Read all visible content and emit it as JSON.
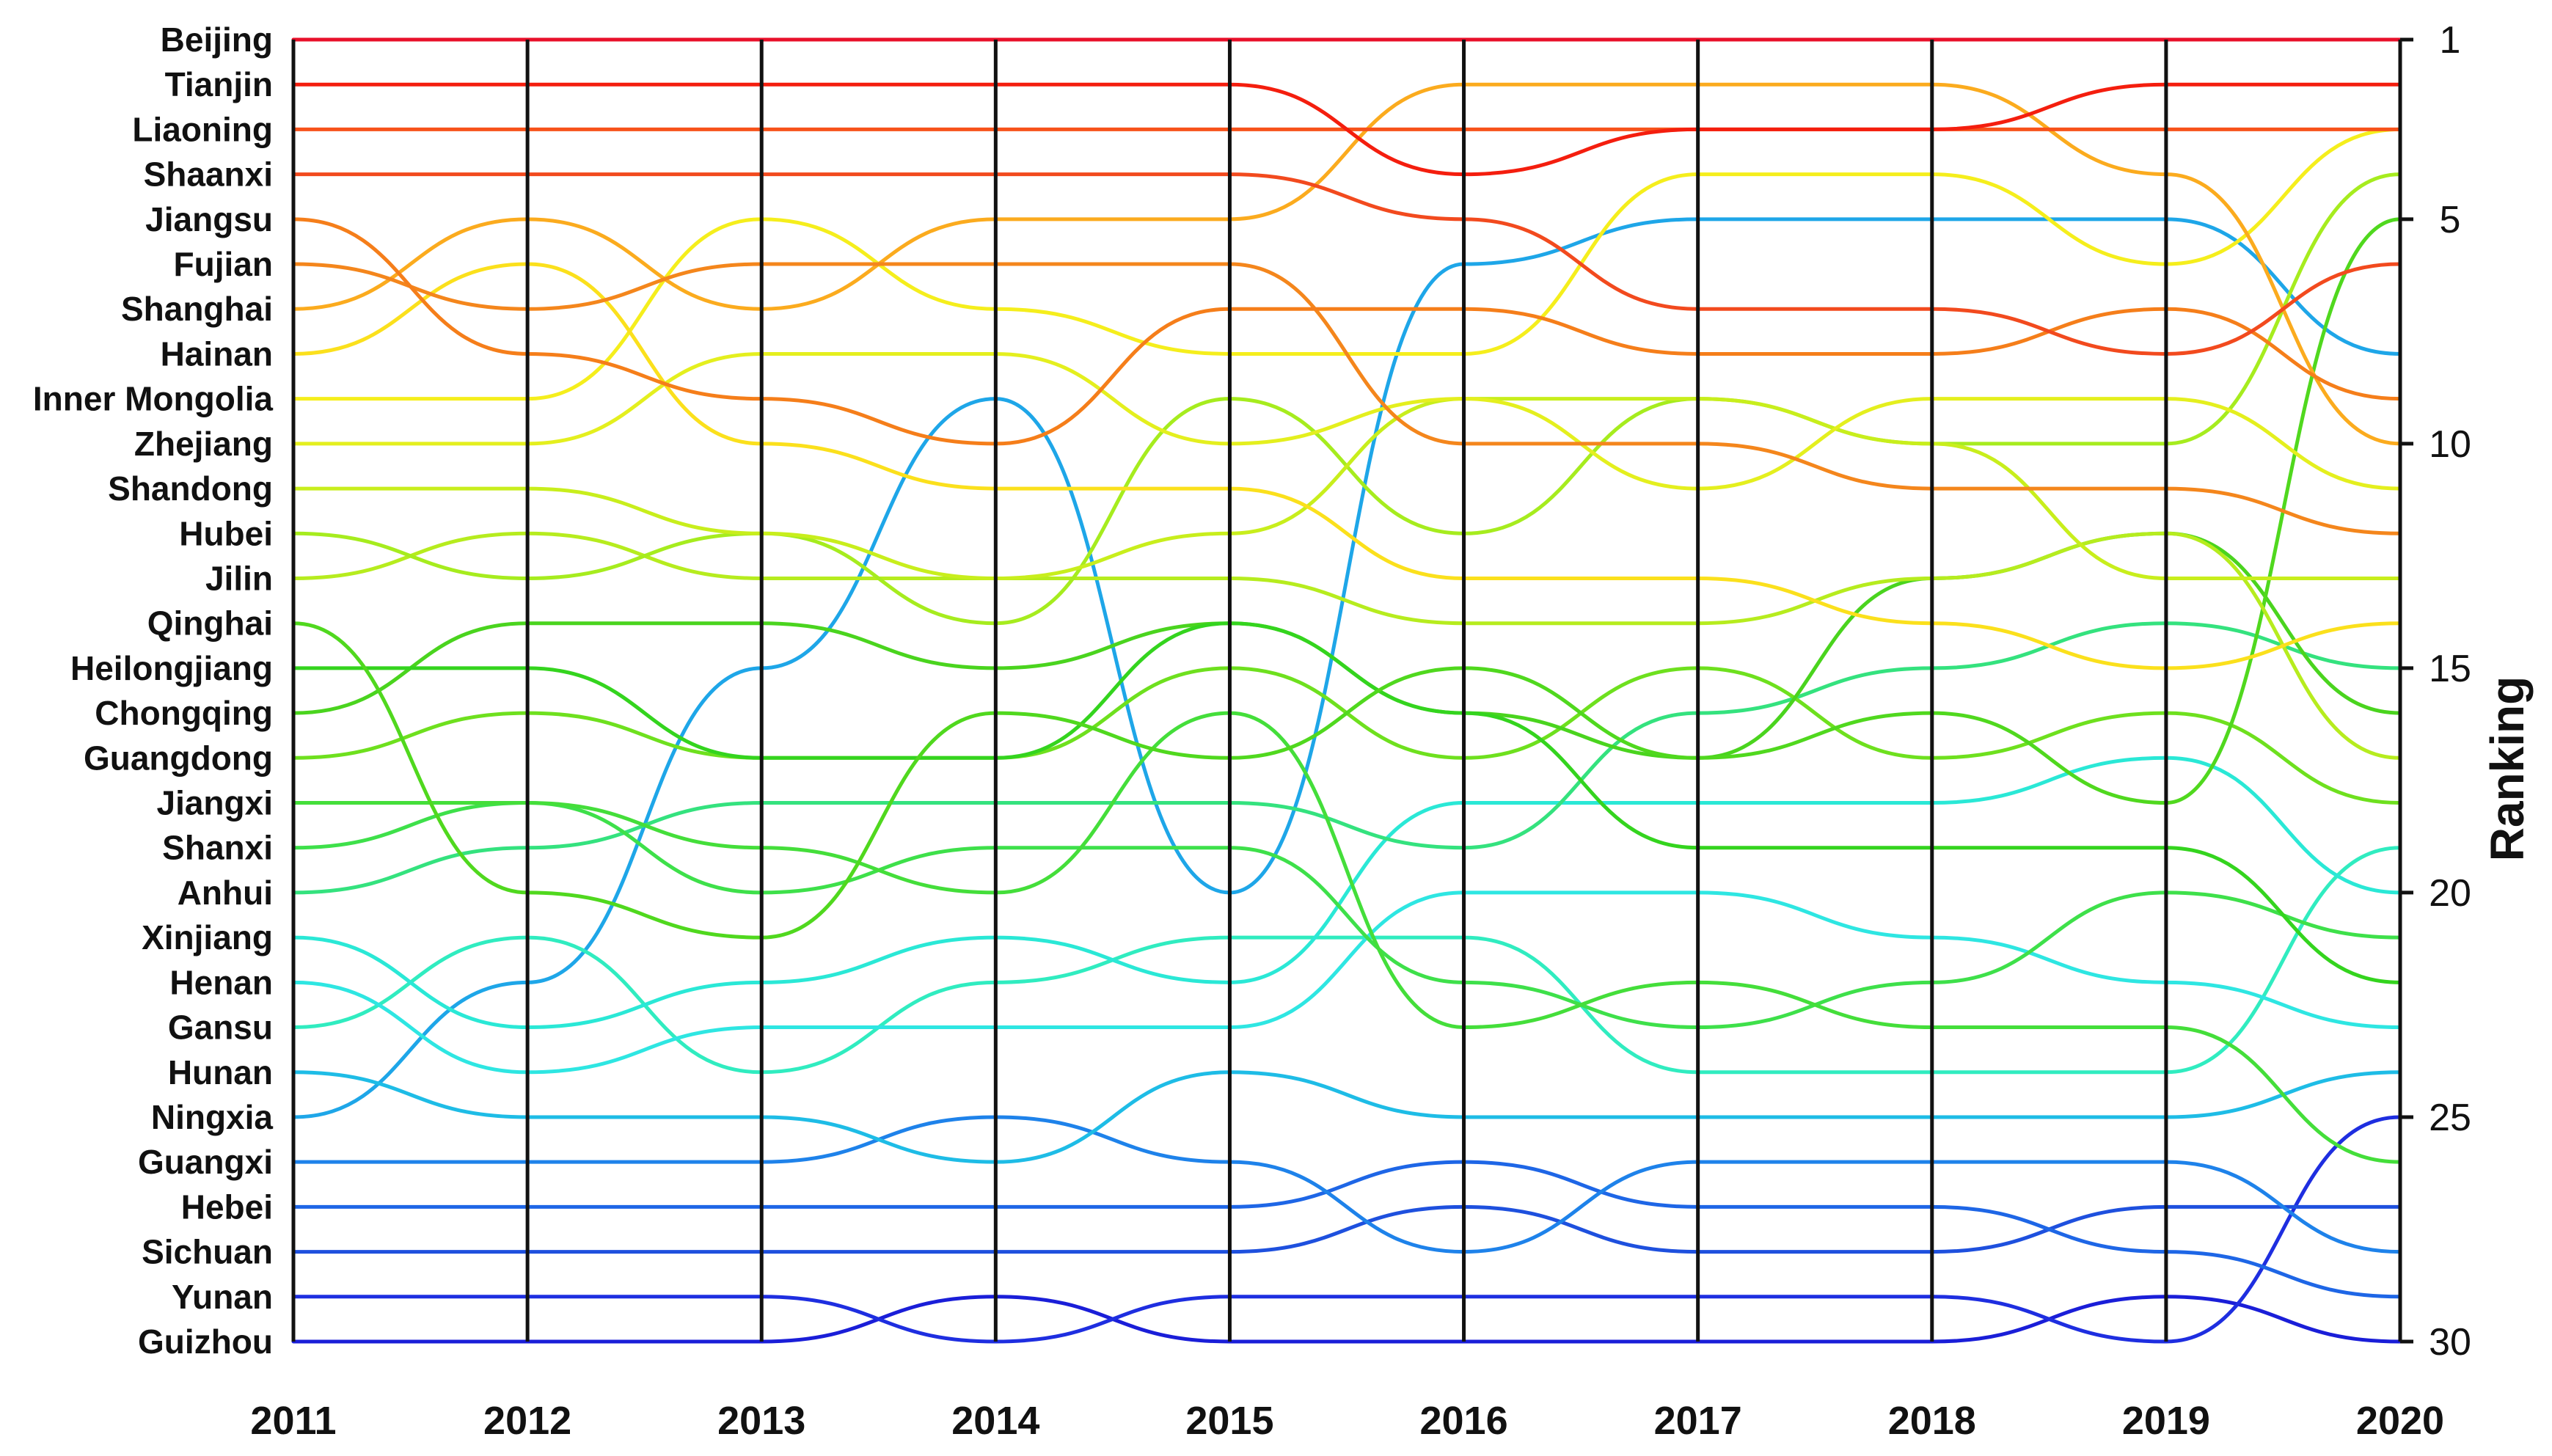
{
  "chart_data": {
    "type": "line",
    "subtype": "bump",
    "x": [
      "2011",
      "2012",
      "2013",
      "2014",
      "2015",
      "2016",
      "2017",
      "2018",
      "2019",
      "2020"
    ],
    "ylabel_right": "Ranking",
    "right_ticks": [
      1,
      5,
      10,
      15,
      20,
      25,
      30
    ],
    "yrange": [
      1,
      30
    ],
    "grid_vertical": true,
    "series": [
      {
        "name": "Beijing",
        "color": "#e8102a",
        "values": [
          1,
          1,
          1,
          1,
          1,
          1,
          1,
          1,
          1,
          1
        ]
      },
      {
        "name": "Tianjin",
        "color": "#f41e0e",
        "values": [
          2,
          2,
          2,
          2,
          2,
          4,
          3,
          3,
          2,
          2
        ]
      },
      {
        "name": "Liaoning",
        "color": "#f7521a",
        "values": [
          3,
          3,
          3,
          3,
          3,
          3,
          3,
          3,
          3,
          3
        ]
      },
      {
        "name": "Shaanxi",
        "color": "#f24a1e",
        "values": [
          4,
          4,
          4,
          4,
          4,
          5,
          7,
          7,
          8,
          6
        ]
      },
      {
        "name": "Jiangsu",
        "color": "#f57e1a",
        "values": [
          5,
          8,
          9,
          10,
          7,
          7,
          8,
          8,
          7,
          9
        ]
      },
      {
        "name": "Fujian",
        "color": "#f4861c",
        "values": [
          6,
          7,
          6,
          6,
          6,
          10,
          10,
          11,
          11,
          12
        ]
      },
      {
        "name": "Shanghai",
        "color": "#fbab1e",
        "values": [
          7,
          5,
          7,
          5,
          5,
          2,
          2,
          2,
          4,
          10
        ]
      },
      {
        "name": "Hainan",
        "color": "#fbe01c",
        "values": [
          8,
          6,
          10,
          11,
          11,
          13,
          13,
          14,
          15,
          14
        ]
      },
      {
        "name": "Inner Mongolia",
        "color": "#f5ee1c",
        "values": [
          9,
          9,
          5,
          7,
          8,
          8,
          4,
          4,
          6,
          3
        ]
      },
      {
        "name": "Zhejiang",
        "color": "#e4ef1e",
        "values": [
          10,
          10,
          8,
          8,
          10,
          9,
          11,
          9,
          9,
          11
        ]
      },
      {
        "name": "Shandong",
        "color": "#c8ee1c",
        "values": [
          11,
          11,
          12,
          13,
          12,
          9,
          9,
          10,
          13,
          13
        ]
      },
      {
        "name": "Hubei",
        "color": "#a6ec1e",
        "values": [
          12,
          13,
          12,
          14,
          9,
          12,
          9,
          10,
          10,
          4
        ]
      },
      {
        "name": "Jilin",
        "color": "#b6ec1e",
        "values": [
          13,
          12,
          13,
          13,
          13,
          14,
          14,
          13,
          12,
          17
        ]
      },
      {
        "name": "Qinghai",
        "color": "#50d81e",
        "values": [
          14,
          20,
          21,
          16,
          17,
          15,
          17,
          16,
          18,
          5
        ]
      },
      {
        "name": "Heilongjiang",
        "color": "#34d41e",
        "values": [
          15,
          15,
          17,
          17,
          14,
          16,
          19,
          19,
          19,
          22
        ]
      },
      {
        "name": "Chongqing",
        "color": "#4ad41e",
        "values": [
          16,
          14,
          14,
          15,
          14,
          16,
          17,
          13,
          12,
          16
        ]
      },
      {
        "name": "Guangdong",
        "color": "#6ee01e",
        "values": [
          17,
          16,
          17,
          17,
          15,
          17,
          15,
          17,
          16,
          18
        ]
      },
      {
        "name": "Jiangxi",
        "color": "#44de3a",
        "values": [
          18,
          18,
          19,
          20,
          16,
          23,
          22,
          23,
          23,
          26
        ]
      },
      {
        "name": "Shanxi",
        "color": "#3ee04a",
        "values": [
          19,
          18,
          20,
          19,
          19,
          22,
          23,
          22,
          20,
          21
        ]
      },
      {
        "name": "Anhui",
        "color": "#34e27e",
        "values": [
          20,
          19,
          18,
          18,
          18,
          19,
          16,
          15,
          14,
          15
        ]
      },
      {
        "name": "Xinjiang",
        "color": "#2ae8d6",
        "values": [
          21,
          23,
          22,
          21,
          22,
          18,
          18,
          18,
          17,
          20
        ]
      },
      {
        "name": "Henan",
        "color": "#2ee6e2",
        "values": [
          22,
          24,
          23,
          23,
          23,
          20,
          20,
          21,
          22,
          23
        ]
      },
      {
        "name": "Gansu",
        "color": "#30ecc0",
        "values": [
          23,
          21,
          24,
          22,
          21,
          21,
          24,
          24,
          24,
          19
        ]
      },
      {
        "name": "Hunan",
        "color": "#1ebce6",
        "values": [
          24,
          25,
          25,
          26,
          24,
          25,
          25,
          25,
          25,
          24
        ]
      },
      {
        "name": "Ningxia",
        "color": "#1ea6e8",
        "values": [
          25,
          22,
          15,
          9,
          20,
          6,
          5,
          5,
          5,
          8
        ]
      },
      {
        "name": "Guangxi",
        "color": "#1e82ea",
        "values": [
          26,
          26,
          26,
          25,
          26,
          28,
          26,
          26,
          26,
          28
        ]
      },
      {
        "name": "Hebei",
        "color": "#1e66e6",
        "values": [
          27,
          27,
          27,
          27,
          27,
          26,
          27,
          27,
          28,
          29
        ]
      },
      {
        "name": "Sichuan",
        "color": "#1e50de",
        "values": [
          28,
          28,
          28,
          28,
          28,
          27,
          28,
          28,
          27,
          27
        ]
      },
      {
        "name": "Yunan",
        "color": "#1e2ee0",
        "values": [
          29,
          29,
          29,
          30,
          29,
          29,
          29,
          29,
          30,
          25
        ]
      },
      {
        "name": "Guizhou",
        "color": "#1a1ed8",
        "values": [
          30,
          30,
          30,
          29,
          30,
          30,
          30,
          30,
          29,
          30
        ]
      }
    ]
  }
}
